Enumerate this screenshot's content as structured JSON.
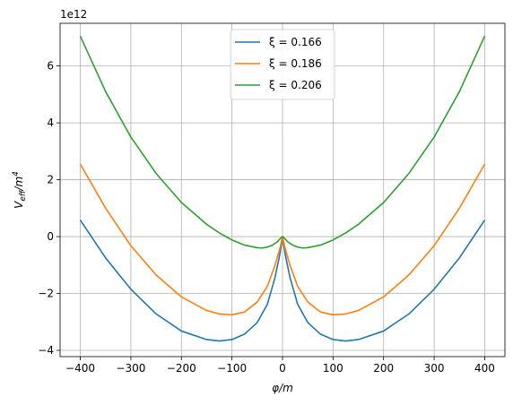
{
  "chart_data": {
    "type": "line",
    "title": "",
    "xlabel": "φ/m",
    "ylabel": "V_eff/m^4",
    "ylabel_main": "V",
    "ylabel_sub": "eff",
    "ylabel_tail": "/m",
    "ylabel_sup": "4",
    "y_offset_label": "1e12",
    "xlim": [
      -440,
      440
    ],
    "ylim": [
      -4.22,
      7.5
    ],
    "x_ticks": [
      -400,
      -300,
      -200,
      -100,
      0,
      100,
      200,
      300,
      400
    ],
    "x_tick_labels": [
      "−400",
      "−300",
      "−200",
      "−100",
      "0",
      "100",
      "200",
      "300",
      "400"
    ],
    "y_ticks": [
      -4,
      -2,
      0,
      2,
      4,
      6
    ],
    "y_tick_labels": [
      "−4",
      "−2",
      "0",
      "2",
      "4",
      "6"
    ],
    "grid": true,
    "legend_position": "top-center",
    "series": [
      {
        "name": "ξ = 0.166",
        "color": "#1f77b4",
        "x": [
          -400,
          -350,
          -300,
          -250,
          -200,
          -150,
          -125,
          -100,
          -75,
          -50,
          -30,
          -15,
          -5,
          0,
          5,
          15,
          30,
          50,
          75,
          100,
          125,
          150,
          200,
          250,
          300,
          350,
          400
        ],
        "y": [
          0.58,
          -0.75,
          -1.85,
          -2.72,
          -3.32,
          -3.62,
          -3.67,
          -3.62,
          -3.43,
          -3.02,
          -2.38,
          -1.45,
          -0.6,
          0.0,
          -0.6,
          -1.45,
          -2.38,
          -3.02,
          -3.43,
          -3.62,
          -3.67,
          -3.62,
          -3.32,
          -2.72,
          -1.85,
          -0.75,
          0.58
        ]
      },
      {
        "name": "ξ = 0.186",
        "color": "#ff7f0e",
        "x": [
          -400,
          -350,
          -300,
          -250,
          -200,
          -150,
          -125,
          -100,
          -75,
          -50,
          -30,
          -15,
          -5,
          0,
          5,
          15,
          30,
          50,
          75,
          100,
          125,
          150,
          200,
          250,
          300,
          350,
          400
        ],
        "y": [
          2.55,
          1.0,
          -0.32,
          -1.35,
          -2.12,
          -2.6,
          -2.72,
          -2.75,
          -2.65,
          -2.3,
          -1.75,
          -1.02,
          -0.4,
          0.0,
          -0.4,
          -1.02,
          -1.75,
          -2.3,
          -2.65,
          -2.75,
          -2.72,
          -2.6,
          -2.12,
          -1.35,
          -0.32,
          1.0,
          2.55
        ]
      },
      {
        "name": "ξ = 0.206",
        "color": "#2ca02c",
        "x": [
          -400,
          -350,
          -300,
          -250,
          -200,
          -150,
          -125,
          -100,
          -75,
          -50,
          -40,
          -30,
          -20,
          -10,
          -5,
          0,
          5,
          10,
          20,
          30,
          40,
          50,
          75,
          100,
          125,
          150,
          200,
          250,
          300,
          350,
          400
        ],
        "y": [
          7.05,
          5.1,
          3.5,
          2.22,
          1.2,
          0.43,
          0.13,
          -0.12,
          -0.3,
          -0.39,
          -0.4,
          -0.37,
          -0.3,
          -0.18,
          -0.08,
          0.0,
          -0.08,
          -0.18,
          -0.3,
          -0.37,
          -0.4,
          -0.39,
          -0.3,
          -0.12,
          0.13,
          0.43,
          1.2,
          2.22,
          3.5,
          5.1,
          7.05
        ]
      }
    ]
  }
}
